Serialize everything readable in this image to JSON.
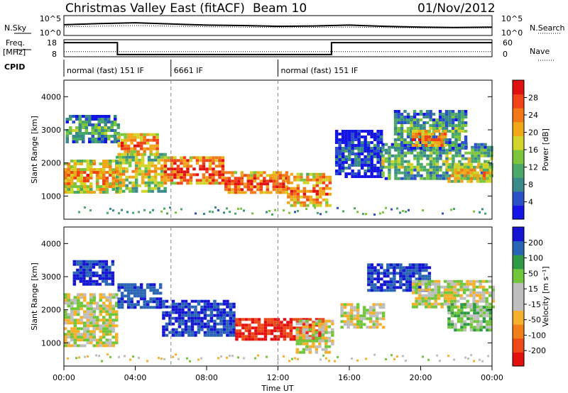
{
  "header": {
    "title": "Christmas Valley East (fitACF)",
    "beam": "Beam 10",
    "date": "01/Nov/2012"
  },
  "panel_labels": {
    "nsky": "N.Sky",
    "nsearch": "N.Search",
    "freq_line1": "Freq.",
    "freq_line2": "[MHz]",
    "nave": "Nave",
    "cpid": "CPID"
  },
  "top_axes": {
    "noise_left_ticks": [
      "10^5",
      "10^0"
    ],
    "noise_right_ticks": [
      "10^5",
      "10^0"
    ],
    "freq_left_ticks": [
      "18",
      "8"
    ],
    "nave_right_ticks": [
      "60",
      "0"
    ]
  },
  "cpid_segments": [
    {
      "label": "normal (fast) 151 IF",
      "start": 0,
      "end": 6
    },
    {
      "label": "6661 IF",
      "start": 6,
      "end": 12
    },
    {
      "label": "normal (fast) 151 IF",
      "start": 12,
      "end": 24
    }
  ],
  "x_axis": {
    "label": "Time UT",
    "ticks": [
      "00:00",
      "04:00",
      "08:00",
      "12:00",
      "16:00",
      "20:00",
      "00:00"
    ]
  },
  "range_axis": {
    "label": "Slant Range [km]",
    "ticks": [
      "4000",
      "3000",
      "2000",
      "1000"
    ]
  },
  "power_colorbar": {
    "label": "Power [dB]",
    "ticks": [
      "28",
      "24",
      "20",
      "16",
      "12",
      "8",
      "4"
    ],
    "colors": [
      "#1414e6",
      "#2c50c8",
      "#3a8a8a",
      "#4aa868",
      "#7cc63e",
      "#d2d42a",
      "#f0a818",
      "#f27818",
      "#f04418",
      "#e01010"
    ]
  },
  "velocity_colorbar": {
    "label": "Velocity [m s⁻¹]",
    "ticks": [
      "200",
      "100",
      "50",
      "15",
      "-15",
      "-50",
      "-100",
      "-200"
    ],
    "colors": [
      "#1414d2",
      "#2a64b4",
      "#2e9a46",
      "#72c63c",
      "#bebebe",
      "#bebebe",
      "#f6b02c",
      "#f07e1a",
      "#ee4a18",
      "#e41010"
    ]
  },
  "chart_data": [
    {
      "type": "line",
      "title": "N.Sky / N.Search",
      "x_units": "hours UT",
      "ylim_log10": [
        0,
        5
      ],
      "series": [
        {
          "name": "N.Sky",
          "x": [
            0,
            2,
            4,
            6,
            8,
            10,
            12,
            14,
            16,
            18,
            20,
            22,
            24
          ],
          "values_log10": [
            2.7,
            3.0,
            3.2,
            2.9,
            2.6,
            2.5,
            2.3,
            2.4,
            2.6,
            2.3,
            2.1,
            2.0,
            2.1
          ]
        },
        {
          "name": "N.Search",
          "x": [
            0,
            4,
            8,
            12,
            16,
            20,
            24
          ],
          "values_log10": [
            2.2,
            2.5,
            2.2,
            2.0,
            2.1,
            1.9,
            1.9
          ]
        }
      ]
    },
    {
      "type": "line",
      "title": "Freq / Nave",
      "x_units": "hours UT",
      "ylim": [
        8,
        18
      ],
      "series": [
        {
          "name": "Freq.",
          "x": [
            0,
            3,
            3,
            15,
            15,
            24
          ],
          "values": [
            16.3,
            16.3,
            9.3,
            9.3,
            16.3,
            16.3
          ]
        },
        {
          "name": "Nave",
          "x": [
            0,
            24
          ],
          "values": [
            11,
            11
          ]
        }
      ]
    },
    {
      "type": "heatmap",
      "title": "Power [dB]",
      "x_units": "hours UT",
      "y_units": "km",
      "xlim": [
        0,
        24
      ],
      "ylim": [
        300,
        4500
      ],
      "clim": [
        0,
        30
      ],
      "blobs": [
        {
          "t0": 0,
          "t1": 3.2,
          "r0": 1150,
          "r1": 2100,
          "p": 22
        },
        {
          "t0": 0.1,
          "t1": 3,
          "r0": 2650,
          "r1": 3450,
          "p": 12
        },
        {
          "t0": 2.9,
          "t1": 5.6,
          "r0": 1100,
          "r1": 2300,
          "p": 18
        },
        {
          "t0": 3,
          "t1": 5.2,
          "r0": 2300,
          "r1": 2900,
          "p": 24
        },
        {
          "t0": 5.6,
          "t1": 9,
          "r0": 1400,
          "r1": 2200,
          "p": 27
        },
        {
          "t0": 9,
          "t1": 12.5,
          "r0": 1100,
          "r1": 1750,
          "p": 26
        },
        {
          "t0": 12.5,
          "t1": 15,
          "r0": 700,
          "r1": 1700,
          "p": 24
        },
        {
          "t0": 15.2,
          "t1": 17.8,
          "r0": 1600,
          "r1": 3000,
          "p": 6
        },
        {
          "t0": 17.8,
          "t1": 24,
          "r0": 1500,
          "r1": 2600,
          "p": 14
        },
        {
          "t0": 18.5,
          "t1": 22.5,
          "r0": 2400,
          "r1": 3600,
          "p": 12
        },
        {
          "t0": 19.5,
          "t1": 21.3,
          "r0": 2500,
          "r1": 3000,
          "p": 26
        },
        {
          "t0": 21.5,
          "t1": 24,
          "r0": 1400,
          "r1": 2000,
          "p": 20
        }
      ]
    },
    {
      "type": "heatmap",
      "title": "Velocity [m s⁻¹]",
      "x_units": "hours UT",
      "y_units": "km",
      "xlim": [
        0,
        24
      ],
      "ylim": [
        300,
        4500
      ],
      "clim": [
        -200,
        200
      ],
      "blobs": [
        {
          "t0": 0,
          "t1": 3,
          "r0": 900,
          "r1": 2500,
          "v": 0
        },
        {
          "t0": 0.5,
          "t1": 2.8,
          "r0": 2800,
          "r1": 3500,
          "v": 200
        },
        {
          "t0": 3,
          "t1": 5.4,
          "r0": 2100,
          "r1": 2800,
          "v": 180
        },
        {
          "t0": 5.5,
          "t1": 9.6,
          "r0": 1200,
          "r1": 2300,
          "v": 200
        },
        {
          "t0": 9.6,
          "t1": 14.6,
          "r0": 1100,
          "r1": 1750,
          "v": -200
        },
        {
          "t0": 13,
          "t1": 15,
          "r0": 700,
          "r1": 1700,
          "v": 0
        },
        {
          "t0": 15.5,
          "t1": 18,
          "r0": 1500,
          "r1": 2200,
          "v": 0
        },
        {
          "t0": 17,
          "t1": 20.5,
          "r0": 2600,
          "r1": 3400,
          "v": 200
        },
        {
          "t0": 19.5,
          "t1": 24,
          "r0": 2100,
          "r1": 2900,
          "v": 0
        },
        {
          "t0": 21.5,
          "t1": 24,
          "r0": 1400,
          "r1": 2200,
          "v": 40
        }
      ]
    }
  ]
}
